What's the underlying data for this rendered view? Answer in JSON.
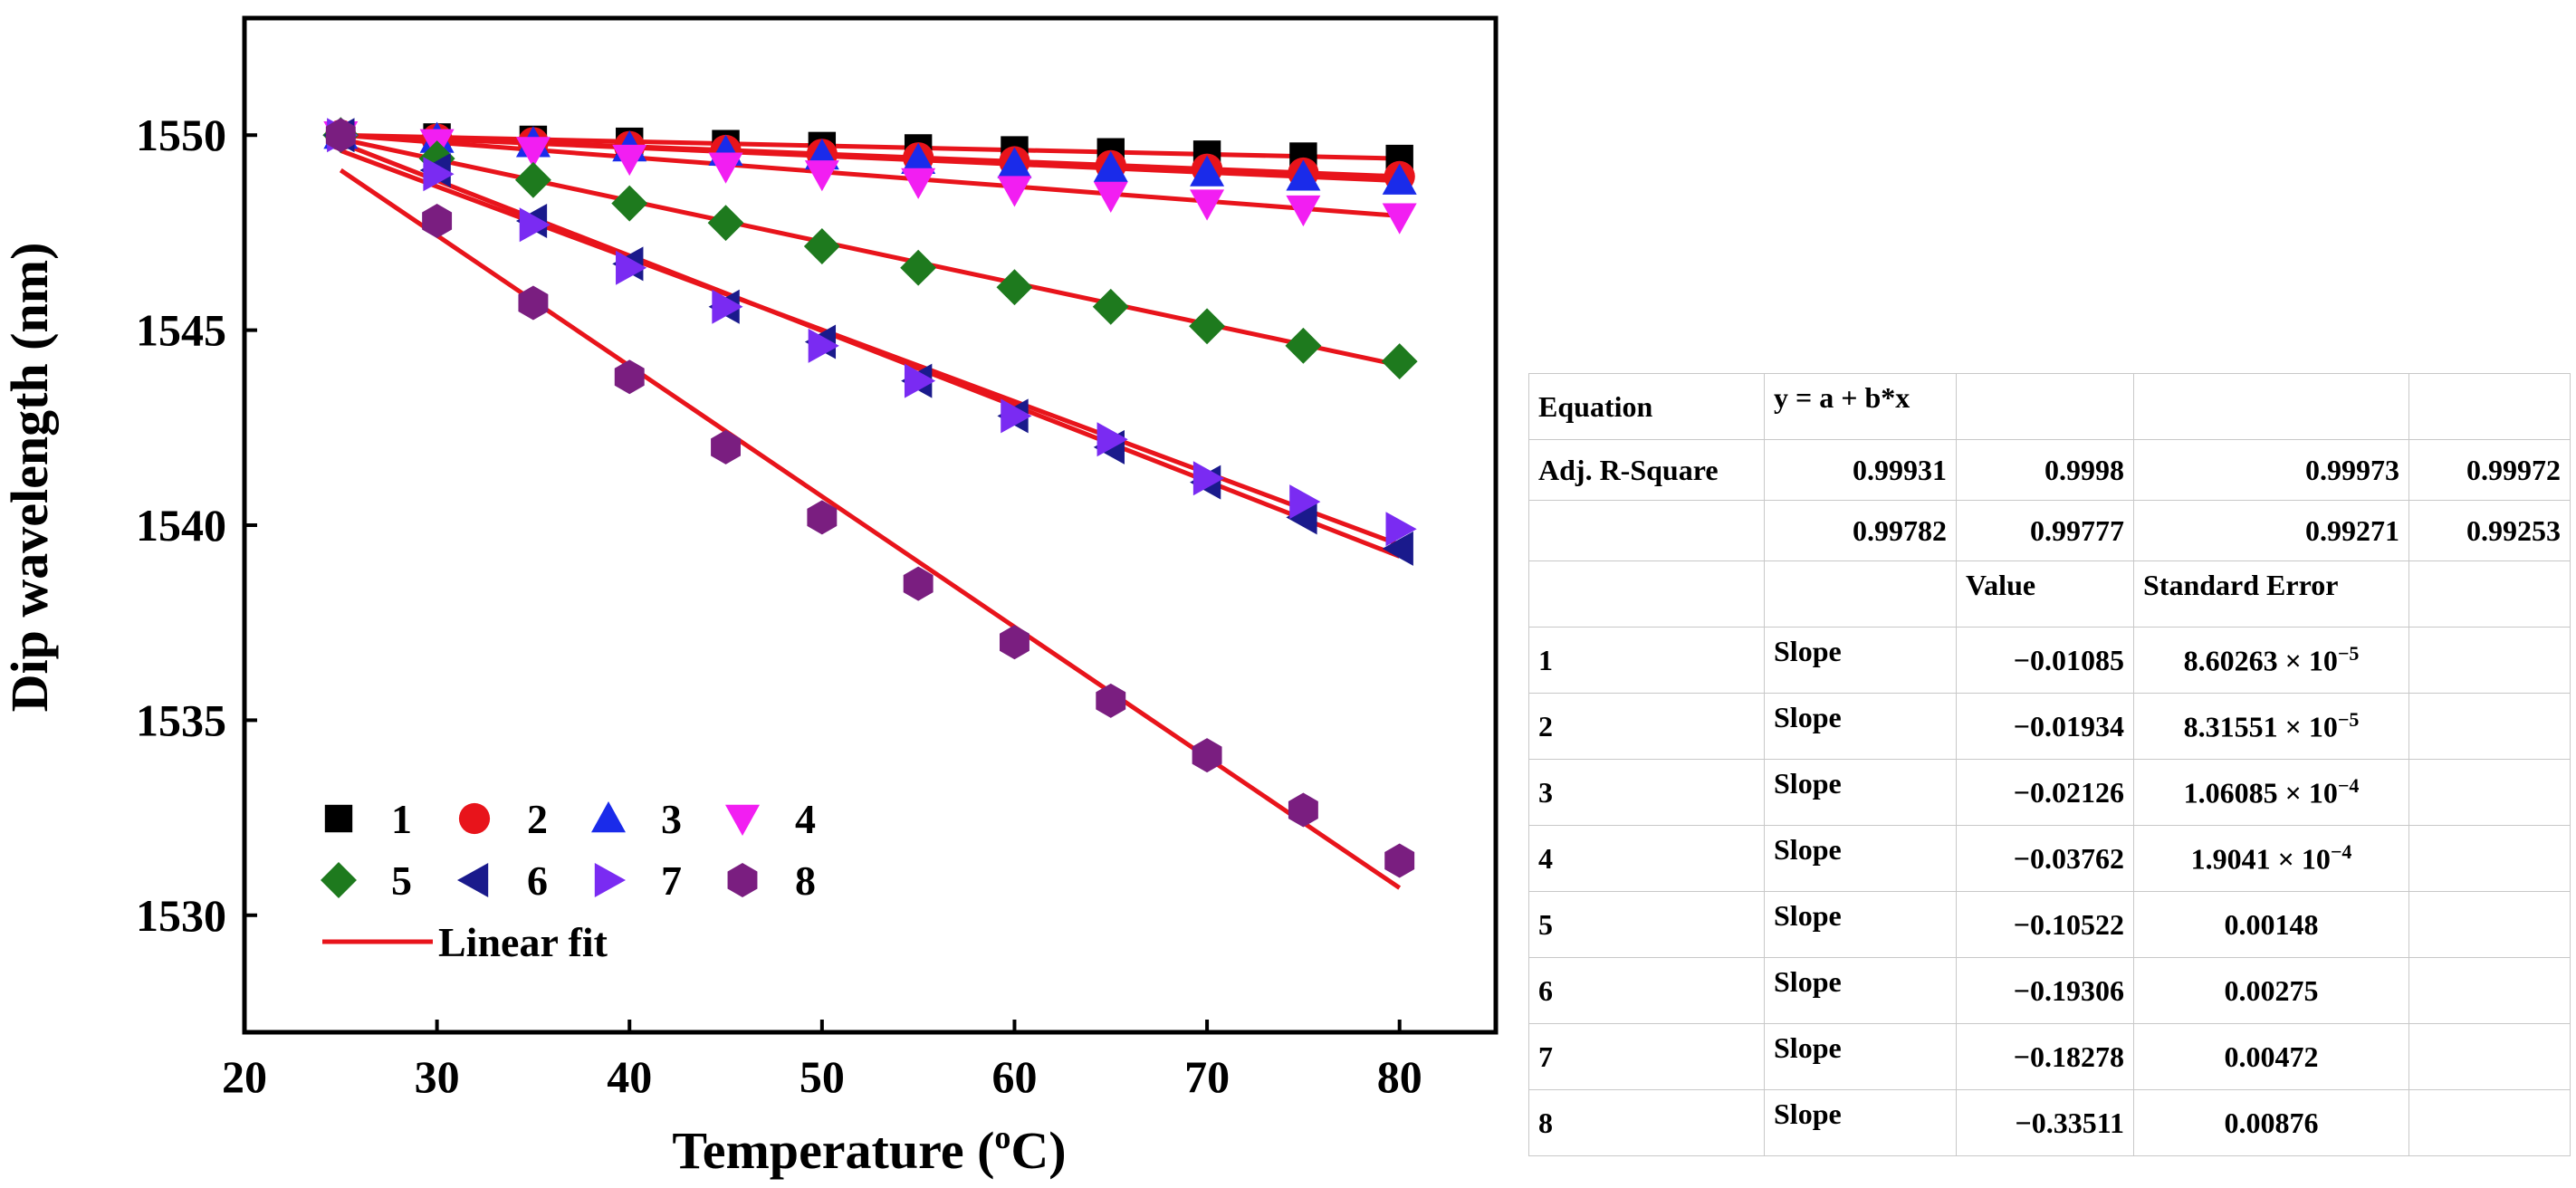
{
  "colors": {
    "fit_line": "#e8141b",
    "series": [
      "#000000",
      "#e8141b",
      "#1a2bea",
      "#f21ef2",
      "#1e7a1e",
      "#1a1a8c",
      "#7a2bf2",
      "#7a1e80"
    ]
  },
  "chart_data": {
    "type": "scatter",
    "title": "",
    "xlabel": "Temperature (°C)",
    "xlabel_main": "Temperature (",
    "xlabel_sup": "o",
    "xlabel_end": "C)",
    "ylabel": "Dip wavelength (nm)",
    "xlim": [
      20,
      85
    ],
    "ylim": [
      1527,
      1553
    ],
    "xticks": [
      20,
      30,
      40,
      50,
      60,
      70,
      80
    ],
    "yticks": [
      1530,
      1535,
      1540,
      1545,
      1550
    ],
    "x": [
      25,
      30,
      35,
      40,
      45,
      50,
      55,
      60,
      65,
      70,
      75,
      80
    ],
    "series": [
      {
        "name": "1",
        "marker": "square",
        "values": [
          1550,
          1549.95,
          1549.89,
          1549.84,
          1549.78,
          1549.73,
          1549.67,
          1549.62,
          1549.57,
          1549.51,
          1549.46,
          1549.4
        ]
      },
      {
        "name": "2",
        "marker": "circle",
        "values": [
          1550,
          1549.9,
          1549.81,
          1549.71,
          1549.61,
          1549.51,
          1549.42,
          1549.32,
          1549.22,
          1549.13,
          1549.03,
          1548.94
        ]
      },
      {
        "name": "3",
        "marker": "triangle-up",
        "values": [
          1550,
          1549.9,
          1549.79,
          1549.68,
          1549.57,
          1549.47,
          1549.36,
          1549.25,
          1549.15,
          1549.04,
          1548.93,
          1548.83
        ]
      },
      {
        "name": "4",
        "marker": "triangle-down",
        "values": [
          1550,
          1549.8,
          1549.6,
          1549.4,
          1549.2,
          1549.0,
          1548.8,
          1548.6,
          1548.45,
          1548.25,
          1548.1,
          1547.9
        ]
      },
      {
        "name": "5",
        "marker": "diamond",
        "values": [
          1550,
          1549.4,
          1548.85,
          1548.25,
          1547.75,
          1547.15,
          1546.6,
          1546.1,
          1545.6,
          1545.1,
          1544.6,
          1544.2
        ]
      },
      {
        "name": "6",
        "marker": "triangle-left",
        "values": [
          1550,
          1549.1,
          1547.8,
          1546.7,
          1545.6,
          1544.7,
          1543.7,
          1542.8,
          1542.0,
          1541.1,
          1540.2,
          1539.4
        ]
      },
      {
        "name": "7",
        "marker": "triangle-right",
        "values": [
          1550,
          1549.0,
          1547.7,
          1546.6,
          1545.6,
          1544.6,
          1543.7,
          1542.8,
          1542.2,
          1541.2,
          1540.6,
          1539.9
        ]
      },
      {
        "name": "8",
        "marker": "hexagon",
        "values": [
          1550,
          1547.8,
          1545.7,
          1543.8,
          1542.0,
          1540.2,
          1538.5,
          1537.0,
          1535.5,
          1534.1,
          1532.7,
          1531.4
        ]
      }
    ],
    "fits": [
      {
        "name": "1",
        "x": [
          25,
          80
        ],
        "y": [
          1550,
          1549.4
        ]
      },
      {
        "name": "2",
        "x": [
          25,
          80
        ],
        "y": [
          1550,
          1548.94
        ]
      },
      {
        "name": "3",
        "x": [
          25,
          80
        ],
        "y": [
          1550,
          1548.83
        ]
      },
      {
        "name": "4",
        "x": [
          25,
          80
        ],
        "y": [
          1550,
          1547.93
        ]
      },
      {
        "name": "5",
        "x": [
          25,
          80
        ],
        "y": [
          1549.9,
          1544.1
        ]
      },
      {
        "name": "6",
        "x": [
          25,
          80
        ],
        "y": [
          1549.8,
          1539.2
        ]
      },
      {
        "name": "7",
        "x": [
          25,
          80
        ],
        "y": [
          1549.6,
          1539.5
        ]
      },
      {
        "name": "8",
        "x": [
          25,
          80
        ],
        "y": [
          1549.1,
          1530.7
        ]
      }
    ],
    "legend": {
      "position": "bottom-left",
      "entries": [
        "1",
        "2",
        "3",
        "4",
        "5",
        "6",
        "7",
        "8"
      ],
      "fit_label": "Linear fit"
    }
  },
  "table": {
    "equation_label": "Equation",
    "equation_value": "y = a + b*x",
    "adj_r_label": "Adj. R-Square",
    "adj_r_row1": [
      "0.99931",
      "0.9998",
      "0.99973",
      "0.99972"
    ],
    "adj_r_row2": [
      "0.99782",
      "0.99777",
      "0.99271",
      "0.99253"
    ],
    "header_value": "Value",
    "header_error": "Standard Error",
    "rows": [
      {
        "id": "1",
        "param": "Slope",
        "value": "−0.01085",
        "error_base": "8.60263 × 10",
        "error_exp": "−5"
      },
      {
        "id": "2",
        "param": "Slope",
        "value": "−0.01934",
        "error_base": "8.31551 × 10",
        "error_exp": "−5"
      },
      {
        "id": "3",
        "param": "Slope",
        "value": "−0.02126",
        "error_base": "1.06085 × 10",
        "error_exp": "−4"
      },
      {
        "id": "4",
        "param": "Slope",
        "value": "−0.03762",
        "error_base": "1.9041 × 10",
        "error_exp": "−4"
      },
      {
        "id": "5",
        "param": "Slope",
        "value": "−0.10522",
        "error_base": "0.00148",
        "error_exp": ""
      },
      {
        "id": "6",
        "param": "Slope",
        "value": "−0.19306",
        "error_base": "0.00275",
        "error_exp": ""
      },
      {
        "id": "7",
        "param": "Slope",
        "value": "−0.18278",
        "error_base": "0.00472",
        "error_exp": ""
      },
      {
        "id": "8",
        "param": "Slope",
        "value": "−0.33511",
        "error_base": "0.00876",
        "error_exp": ""
      }
    ]
  }
}
